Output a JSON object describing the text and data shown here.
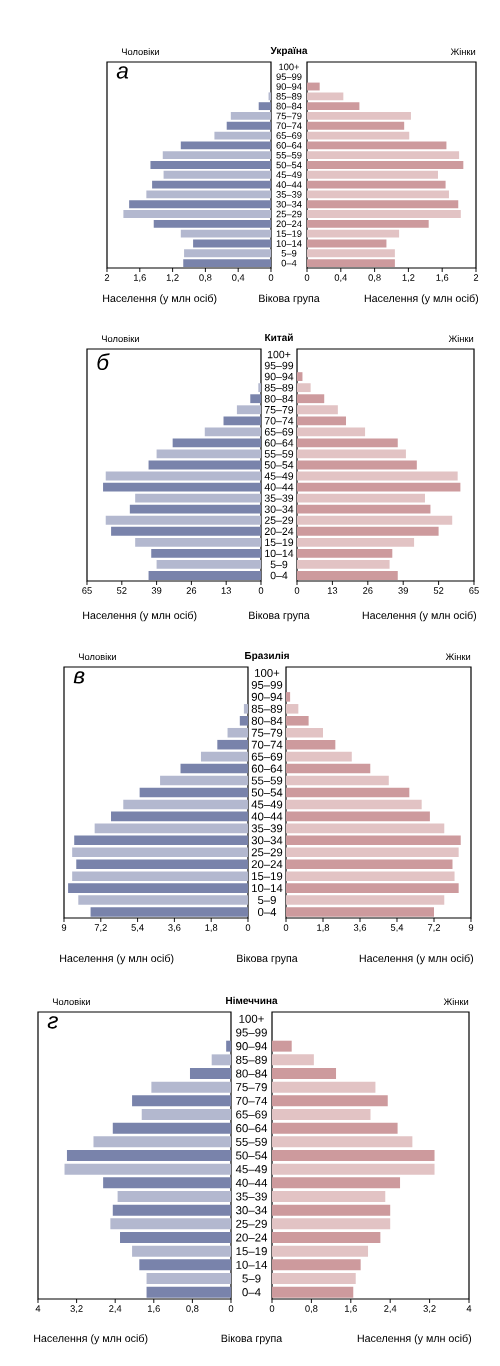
{
  "chart_data": [
    {
      "type": "bar",
      "orientation": "horizontal",
      "title": "Україна",
      "subtitle": "Чоловіки",
      "xlabel": "Населення (у млн осіб)",
      "ylabel": "Вікова група",
      "annotations": [
        "а"
      ],
      "categories": [
        "100+",
        "95–99",
        "90–94",
        "85–89",
        "80–84",
        "75–79",
        "70–74",
        "65–69",
        "60–64",
        "55–59",
        "50–54",
        "45–49",
        "40–44",
        "35–39",
        "30–34",
        "25–29",
        "20–24",
        "15–19",
        "10–14",
        "5–9",
        "0–4"
      ],
      "values": [
        0,
        0,
        0,
        0.03,
        0.15,
        0.49,
        0.54,
        0.69,
        1.1,
        1.32,
        1.47,
        1.31,
        1.45,
        1.52,
        1.73,
        1.8,
        1.43,
        1.1,
        0.95,
        1.06,
        1.07
      ],
      "colors": [
        "#7983ab",
        "#b3b8cf",
        "#7983ab",
        "#b3b8cf",
        "#7983ab",
        "#b3b8cf",
        "#7983ab",
        "#b3b8cf",
        "#7983ab",
        "#b3b8cf",
        "#7983ab",
        "#b3b8cf",
        "#7983ab",
        "#b3b8cf",
        "#7983ab",
        "#b3b8cf",
        "#7983ab",
        "#b3b8cf",
        "#7983ab",
        "#b3b8cf",
        "#7983ab"
      ],
      "xlim": [
        2,
        0
      ],
      "xticks": [
        2,
        {
          "value": 1.6,
          "label": "1,6"
        },
        {
          "value": 1.2,
          "label": "1,2"
        },
        {
          "value": 0.8,
          "label": "0,8"
        },
        {
          "value": 0.4,
          "label": "0,4"
        },
        0
      ]
    },
    {
      "type": "bar",
      "orientation": "horizontal",
      "subtitle": "Жінки",
      "xlabel": "Населення (у млн осіб)",
      "tick_labels": "x",
      "categories": [
        "100+",
        "95–99",
        "90–94",
        "85–89",
        "80–84",
        "75–79",
        "70–74",
        "65–69",
        "60–64",
        "55–59",
        "50–54",
        "45–49",
        "40–44",
        "35–39",
        "30–34",
        "25–29",
        "20–24",
        "15–19",
        "10–14",
        "5–9",
        "0–4"
      ],
      "values": [
        0,
        0,
        0.15,
        0.43,
        0.62,
        1.23,
        1.15,
        1.21,
        1.65,
        1.8,
        1.85,
        1.55,
        1.64,
        1.68,
        1.79,
        1.82,
        1.44,
        1.09,
        0.94,
        1.04,
        1.04
      ],
      "colors": [
        "#cd9a9d",
        "#e2c3c4",
        "#cd9a9d",
        "#e2c3c4",
        "#cd9a9d",
        "#e2c3c4",
        "#cd9a9d",
        "#e2c3c4",
        "#cd9a9d",
        "#e2c3c4",
        "#cd9a9d",
        "#e2c3c4",
        "#cd9a9d",
        "#e2c3c4",
        "#cd9a9d",
        "#e2c3c4",
        "#cd9a9d",
        "#e2c3c4",
        "#cd9a9d",
        "#e2c3c4",
        "#cd9a9d"
      ],
      "xlim": [
        0,
        2
      ],
      "xticks": [
        0,
        {
          "value": 0.4,
          "label": "0,4"
        },
        {
          "value": 0.8,
          "label": "0,8"
        },
        {
          "value": 1.2,
          "label": "1,2"
        },
        {
          "value": 1.6,
          "label": "1,6"
        },
        2
      ]
    },
    {
      "type": "bar",
      "orientation": "horizontal",
      "title": "Китай",
      "subtitle": "Чоловіки",
      "xlabel": "Населення (у млн осіб)",
      "ylabel": "Вікова група",
      "annotations": [
        "б"
      ],
      "categories": [
        "100+",
        "95–99",
        "90–94",
        "85–89",
        "80–84",
        "75–79",
        "70–74",
        "65–69",
        "60–64",
        "55–59",
        "50–54",
        "45–49",
        "40–44",
        "35–39",
        "30–34",
        "25–29",
        "20–24",
        "15–19",
        "10–14",
        "5–9",
        "0–4"
      ],
      "values": [
        0,
        0,
        0,
        1,
        4,
        9,
        14,
        21,
        33,
        39,
        42,
        58,
        59,
        47,
        49,
        58,
        56,
        47,
        41,
        39,
        42
      ],
      "colors": [
        "#7983ab",
        "#b3b8cf",
        "#7983ab",
        "#b3b8cf",
        "#7983ab",
        "#b3b8cf",
        "#7983ab",
        "#b3b8cf",
        "#7983ab",
        "#b3b8cf",
        "#7983ab",
        "#b3b8cf",
        "#7983ab",
        "#b3b8cf",
        "#7983ab",
        "#b3b8cf",
        "#7983ab",
        "#b3b8cf",
        "#7983ab",
        "#b3b8cf",
        "#7983ab"
      ],
      "xlim": [
        65,
        0
      ],
      "xticks": [
        65,
        52,
        39,
        26,
        13,
        0
      ]
    },
    {
      "type": "bar",
      "orientation": "horizontal",
      "subtitle": "Жінки",
      "xlabel": "Населення (у млн осіб)",
      "tick_labels": "x",
      "categories": [
        "100+",
        "95–99",
        "90–94",
        "85–89",
        "80–84",
        "75–79",
        "70–74",
        "65–69",
        "60–64",
        "55–59",
        "50–54",
        "45–49",
        "40–44",
        "35–39",
        "30–34",
        "25–29",
        "20–24",
        "15–19",
        "10–14",
        "5–9",
        "0–4"
      ],
      "values": [
        0,
        0,
        2,
        5,
        10,
        15,
        18,
        25,
        37,
        40,
        44,
        59,
        60,
        47,
        49,
        57,
        52,
        43,
        35,
        34,
        37
      ],
      "colors": [
        "#cd9a9d",
        "#e2c3c4",
        "#cd9a9d",
        "#e2c3c4",
        "#cd9a9d",
        "#e2c3c4",
        "#cd9a9d",
        "#e2c3c4",
        "#cd9a9d",
        "#e2c3c4",
        "#cd9a9d",
        "#e2c3c4",
        "#cd9a9d",
        "#e2c3c4",
        "#cd9a9d",
        "#e2c3c4",
        "#cd9a9d",
        "#e2c3c4",
        "#cd9a9d",
        "#e2c3c4",
        "#cd9a9d"
      ],
      "xlim": [
        0,
        65
      ],
      "xticks": [
        0,
        13,
        26,
        39,
        52,
        65
      ]
    },
    {
      "type": "bar",
      "orientation": "horizontal",
      "title": "Бразилія",
      "subtitle": "Чоловіки",
      "xlabel": "Населення (у млн осіб)",
      "ylabel": "Вікова група",
      "annotations": [
        "в"
      ],
      "categories": [
        "100+",
        "95–99",
        "90–94",
        "85–89",
        "80–84",
        "75–79",
        "70–74",
        "65–69",
        "60–64",
        "55–59",
        "50–54",
        "45–49",
        "40–44",
        "35–39",
        "30–34",
        "25–29",
        "20–24",
        "15–19",
        "10–14",
        "5–9",
        "0–4"
      ],
      "values": [
        0,
        0,
        0,
        0.2,
        0.4,
        1,
        1.5,
        2.3,
        3.3,
        4.3,
        5.3,
        6.1,
        6.7,
        7.5,
        8.5,
        8.6,
        8.4,
        8.6,
        8.8,
        8.3,
        7.7
      ],
      "colors": [
        "#7983ab",
        "#b3b8cf",
        "#7983ab",
        "#b3b8cf",
        "#7983ab",
        "#b3b8cf",
        "#7983ab",
        "#b3b8cf",
        "#7983ab",
        "#b3b8cf",
        "#7983ab",
        "#b3b8cf",
        "#7983ab",
        "#b3b8cf",
        "#7983ab",
        "#b3b8cf",
        "#7983ab",
        "#b3b8cf",
        "#7983ab",
        "#b3b8cf",
        "#7983ab"
      ],
      "xlim": [
        9,
        0
      ],
      "xticks": [
        9,
        {
          "value": 7.2,
          "label": "7,2"
        },
        {
          "value": 5.4,
          "label": "5,4"
        },
        {
          "value": 3.6,
          "label": "3,6"
        },
        {
          "value": 1.8,
          "label": "1,8"
        },
        0
      ]
    },
    {
      "type": "bar",
      "orientation": "horizontal",
      "subtitle": "Жінки",
      "xlabel": "Населення (у млн осіб)",
      "tick_labels": "x",
      "categories": [
        "100+",
        "95–99",
        "90–94",
        "85–89",
        "80–84",
        "75–79",
        "70–74",
        "65–69",
        "60–64",
        "55–59",
        "50–54",
        "45–49",
        "40–44",
        "35–39",
        "30–34",
        "25–29",
        "20–24",
        "15–19",
        "10–14",
        "5–9",
        "0–4"
      ],
      "values": [
        0,
        0,
        0.2,
        0.6,
        1.1,
        1.8,
        2.4,
        3.2,
        4.1,
        5,
        6,
        6.6,
        7,
        7.7,
        8.5,
        8.4,
        8.1,
        8.2,
        8.4,
        7.7,
        7.2
      ],
      "colors": [
        "#cd9a9d",
        "#e2c3c4",
        "#cd9a9d",
        "#e2c3c4",
        "#cd9a9d",
        "#e2c3c4",
        "#cd9a9d",
        "#e2c3c4",
        "#cd9a9d",
        "#e2c3c4",
        "#cd9a9d",
        "#e2c3c4",
        "#cd9a9d",
        "#e2c3c4",
        "#cd9a9d",
        "#e2c3c4",
        "#cd9a9d",
        "#e2c3c4",
        "#cd9a9d",
        "#e2c3c4",
        "#cd9a9d"
      ],
      "xlim": [
        0,
        9
      ],
      "xticks": [
        0,
        {
          "value": 1.8,
          "label": "1,8"
        },
        {
          "value": 3.6,
          "label": "3,6"
        },
        {
          "value": 5.4,
          "label": "5,4"
        },
        {
          "value": 7.2,
          "label": "7,2"
        },
        9
      ]
    },
    {
      "type": "bar",
      "orientation": "horizontal",
      "title": "Німеччина",
      "subtitle": "Чоловіки",
      "xlabel": "Населення (у млн осіб)",
      "ylabel": "Вікова група",
      "annotations": [
        "г"
      ],
      "categories": [
        "100+",
        "95–99",
        "90–94",
        "85–89",
        "80–84",
        "75–79",
        "70–74",
        "65–69",
        "60–64",
        "55–59",
        "50–54",
        "45–49",
        "40–44",
        "35–39",
        "30–34",
        "25–29",
        "20–24",
        "15–19",
        "10–14",
        "5–9",
        "0–4"
      ],
      "values": [
        0,
        0,
        0.1,
        0.4,
        0.85,
        1.65,
        2.05,
        1.85,
        2.45,
        2.85,
        3.4,
        3.45,
        2.65,
        2.35,
        2.45,
        2.5,
        2.3,
        2.05,
        1.9,
        1.75,
        1.75
      ],
      "colors": [
        "#7983ab",
        "#b3b8cf",
        "#7983ab",
        "#b3b8cf",
        "#7983ab",
        "#b3b8cf",
        "#7983ab",
        "#b3b8cf",
        "#7983ab",
        "#b3b8cf",
        "#7983ab",
        "#b3b8cf",
        "#7983ab",
        "#b3b8cf",
        "#7983ab",
        "#b3b8cf",
        "#7983ab",
        "#b3b8cf",
        "#7983ab",
        "#b3b8cf",
        "#7983ab"
      ],
      "xlim": [
        4,
        0
      ],
      "xticks": [
        4,
        {
          "value": 3.2,
          "label": "3,2"
        },
        {
          "value": 2.4,
          "label": "2,4"
        },
        {
          "value": 1.6,
          "label": "1,6"
        },
        {
          "value": 0.8,
          "label": "0,8"
        },
        0
      ]
    },
    {
      "type": "bar",
      "orientation": "horizontal",
      "subtitle": "Жінки",
      "xlabel": "Населення (у млн осіб)",
      "tick_labels": "x",
      "categories": [
        "100+",
        "95–99",
        "90–94",
        "85–89",
        "80–84",
        "75–79",
        "70–74",
        "65–69",
        "60–64",
        "55–59",
        "50–54",
        "45–49",
        "40–44",
        "35–39",
        "30–34",
        "25–29",
        "20–24",
        "15–19",
        "10–14",
        "5–9",
        "0–4"
      ],
      "values": [
        0,
        0,
        0.4,
        0.85,
        1.3,
        2.1,
        2.35,
        2,
        2.55,
        2.85,
        3.3,
        3.3,
        2.6,
        2.3,
        2.4,
        2.4,
        2.2,
        1.95,
        1.8,
        1.7,
        1.65
      ],
      "colors": [
        "#cd9a9d",
        "#e2c3c4",
        "#cd9a9d",
        "#e2c3c4",
        "#cd9a9d",
        "#e2c3c4",
        "#cd9a9d",
        "#e2c3c4",
        "#cd9a9d",
        "#e2c3c4",
        "#cd9a9d",
        "#e2c3c4",
        "#cd9a9d",
        "#e2c3c4",
        "#cd9a9d",
        "#e2c3c4",
        "#cd9a9d",
        "#e2c3c4",
        "#cd9a9d",
        "#e2c3c4",
        "#cd9a9d"
      ],
      "xlim": [
        0,
        4
      ],
      "xticks": [
        0,
        {
          "value": 0.8,
          "label": "0,8"
        },
        {
          "value": 1.6,
          "label": "1,6"
        },
        {
          "value": 2.4,
          "label": "2,4"
        },
        {
          "value": 3.2,
          "label": "3,2"
        },
        4
      ]
    }
  ]
}
